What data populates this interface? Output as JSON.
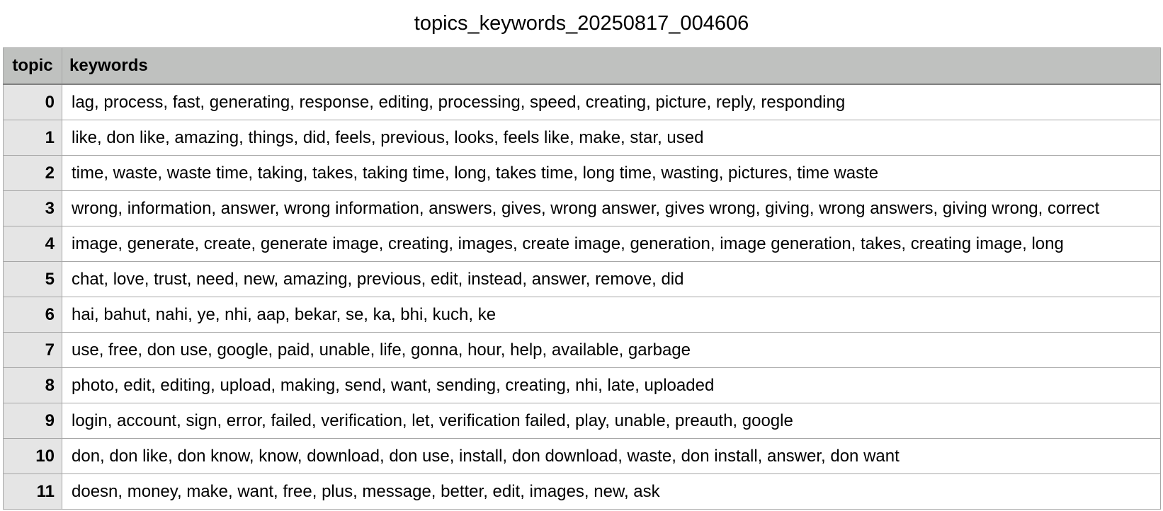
{
  "title": "topics_keywords_20250817_004606",
  "table": {
    "headers": [
      "topic",
      "keywords"
    ],
    "rows": [
      {
        "topic": "0",
        "keywords": "lag, process, fast, generating, response, editing, processing, speed, creating, picture, reply, responding"
      },
      {
        "topic": "1",
        "keywords": "like, don like, amazing, things, did, feels, previous, looks, feels like, make, star, used"
      },
      {
        "topic": "2",
        "keywords": "time, waste, waste time, taking, takes, taking time, long, takes time, long time, wasting, pictures, time waste"
      },
      {
        "topic": "3",
        "keywords": "wrong, information, answer, wrong information, answers, gives, wrong answer, gives wrong, giving, wrong answers, giving wrong, correct"
      },
      {
        "topic": "4",
        "keywords": "image, generate, create, generate image, creating, images, create image, generation, image generation, takes, creating image, long"
      },
      {
        "topic": "5",
        "keywords": "chat, love, trust, need, new, amazing, previous, edit, instead, answer, remove, did"
      },
      {
        "topic": "6",
        "keywords": "hai, bahut, nahi, ye, nhi, aap, bekar, se, ka, bhi, kuch, ke"
      },
      {
        "topic": "7",
        "keywords": "use, free, don use, google, paid, unable, life, gonna, hour, help, available, garbage"
      },
      {
        "topic": "8",
        "keywords": "photo, edit, editing, upload, making, send, want, sending, creating, nhi, late, uploaded"
      },
      {
        "topic": "9",
        "keywords": "login, account, sign, error, failed, verification, let, verification failed, play, unable, preauth, google"
      },
      {
        "topic": "10",
        "keywords": "don, don like, don know, know, download, don use, install, don download, waste, don install, answer, don want"
      },
      {
        "topic": "11",
        "keywords": "doesn, money, make, want, free, plus, message, better, edit, images, new, ask"
      }
    ]
  },
  "colors": {
    "header_background": "#bfc1bf",
    "topic_column_background": "#e5e5e5",
    "grid_line": "#a7a7a7"
  }
}
